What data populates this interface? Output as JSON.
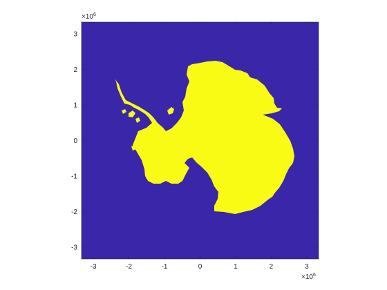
{
  "chart_data": {
    "type": "heatmap",
    "title": "",
    "xlabel": "",
    "ylabel": "",
    "xlim": [
      -3.333,
      3.333
    ],
    "ylim": [
      -3.333,
      3.333
    ],
    "x_ticks": [
      "-3",
      "-2",
      "-1",
      "0",
      "1",
      "2",
      "3"
    ],
    "y_ticks": [
      "3",
      "2",
      "1",
      "0",
      "-1",
      "-2",
      "-3"
    ],
    "x_tick_values": [
      -3,
      -2,
      -1,
      0,
      1,
      2,
      3
    ],
    "y_tick_values": [
      3,
      2,
      1,
      0,
      -1,
      -2,
      -3
    ],
    "x_exponent": {
      "base": "×10",
      "power": "6"
    },
    "y_exponent": {
      "base": "×10",
      "power": "6"
    },
    "categories": [
      0,
      1
    ],
    "colors": {
      "background": "#3a26a8",
      "land": "#f9fb14",
      "axis": "#262626"
    },
    "grid": false,
    "legend": "none"
  }
}
